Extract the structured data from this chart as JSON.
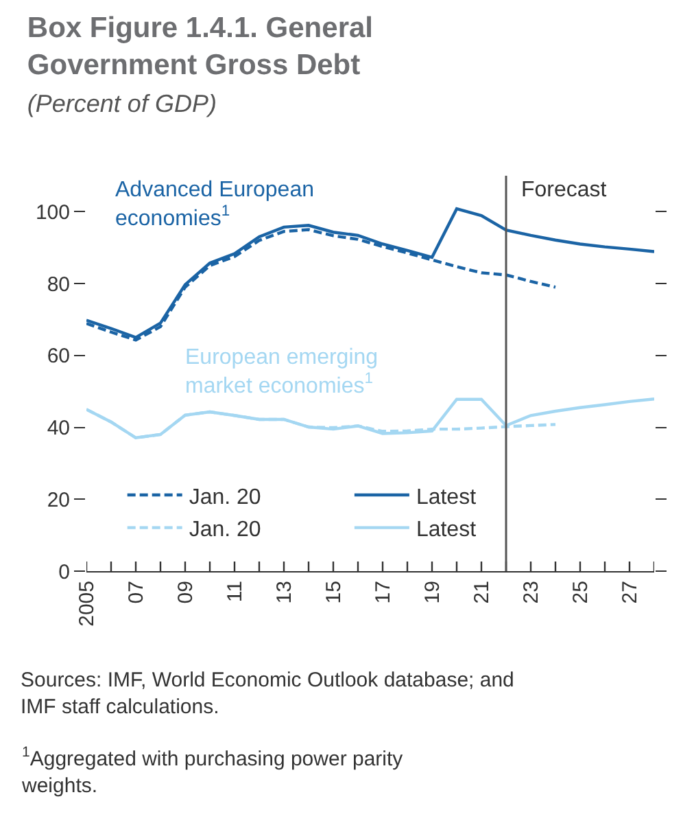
{
  "chart_data": {
    "type": "line",
    "title": "Box Figure 1.4.1. General Government Gross Debt",
    "subtitle": "(Percent of GDP)",
    "x": [
      2005,
      2006,
      2007,
      2008,
      2009,
      2010,
      2011,
      2012,
      2013,
      2014,
      2015,
      2016,
      2017,
      2018,
      2019,
      2020,
      2021,
      2022,
      2023,
      2024,
      2025,
      2026,
      2027,
      2028
    ],
    "series": [
      {
        "name": "Jan. 20",
        "color": "#1b64a5",
        "line_style": "dashed",
        "values": [
          68.9,
          66.5,
          64.3,
          68,
          79,
          85,
          87.5,
          92,
          94.5,
          95,
          93.3,
          92.3,
          90.3,
          88.5,
          86.6,
          84.7,
          83,
          82.4,
          80.6,
          79,
          null,
          null,
          null,
          null
        ]
      },
      {
        "name": "Latest",
        "color": "#1b64a5",
        "line_style": "solid",
        "values": [
          69.8,
          67.5,
          65,
          69,
          79.7,
          85.7,
          88.3,
          93,
          95.7,
          96.2,
          94.3,
          93.4,
          91,
          89.2,
          87.3,
          100.8,
          98.9,
          94.9,
          93.4,
          92.1,
          91,
          90.2,
          89.6,
          88.9
        ]
      },
      {
        "name": "Jan. 20",
        "color": "#a4d7f2",
        "line_style": "dashed",
        "values": [
          45,
          41.5,
          37.1,
          38,
          43.4,
          44.3,
          43.3,
          42.2,
          42.2,
          40.1,
          39.9,
          40.4,
          38.9,
          39,
          39.5,
          39.5,
          39.8,
          40.2,
          40.5,
          40.8,
          null,
          null,
          null,
          null
        ]
      },
      {
        "name": "Latest",
        "color": "#a4d7f2",
        "line_style": "solid",
        "values": [
          45,
          41.5,
          37.1,
          38,
          43.4,
          44.3,
          43.3,
          42.2,
          42.2,
          40.1,
          39.5,
          40.4,
          38.3,
          38.5,
          39,
          47.8,
          47.8,
          40.5,
          43.3,
          44.5,
          45.5,
          46.3,
          47.2,
          47.9
        ]
      }
    ],
    "xlim": [
      2005,
      2028
    ],
    "xticks": [
      {
        "value": 2005,
        "label": "2005"
      },
      {
        "value": 2006,
        "label": null
      },
      {
        "value": 2007,
        "label": "07"
      },
      {
        "value": 2008,
        "label": null
      },
      {
        "value": 2009,
        "label": "09"
      },
      {
        "value": 2010,
        "label": null
      },
      {
        "value": 2011,
        "label": "11"
      },
      {
        "value": 2012,
        "label": null
      },
      {
        "value": 2013,
        "label": "13"
      },
      {
        "value": 2014,
        "label": null
      },
      {
        "value": 2015,
        "label": "15"
      },
      {
        "value": 2016,
        "label": null
      },
      {
        "value": 2017,
        "label": "17"
      },
      {
        "value": 2018,
        "label": null
      },
      {
        "value": 2019,
        "label": "19"
      },
      {
        "value": 2020,
        "label": null
      },
      {
        "value": 2021,
        "label": "21"
      },
      {
        "value": 2022,
        "label": null
      },
      {
        "value": 2023,
        "label": "23"
      },
      {
        "value": 2024,
        "label": null
      },
      {
        "value": 2025,
        "label": "25"
      },
      {
        "value": 2026,
        "label": null
      },
      {
        "value": 2027,
        "label": "27"
      },
      {
        "value": 2028,
        "label": null
      }
    ],
    "ylim": [
      0,
      110
    ],
    "yticks": [
      0,
      20,
      40,
      60,
      80,
      100
    ],
    "ref_lines": [
      {
        "axis": "x",
        "value": 2022,
        "label": "Forecast",
        "color": "#555555"
      }
    ],
    "annotations": [
      "Advanced European economies$^{1}$",
      "European emerging market economies$^{1}$",
      "Sources: IMF, World Economic Outlook database; and IMF staff calculations.",
      "$^{1}$Aggregated with purchasing power parity weights."
    ],
    "legend": "bottom left",
    "marker": "none"
  }
}
